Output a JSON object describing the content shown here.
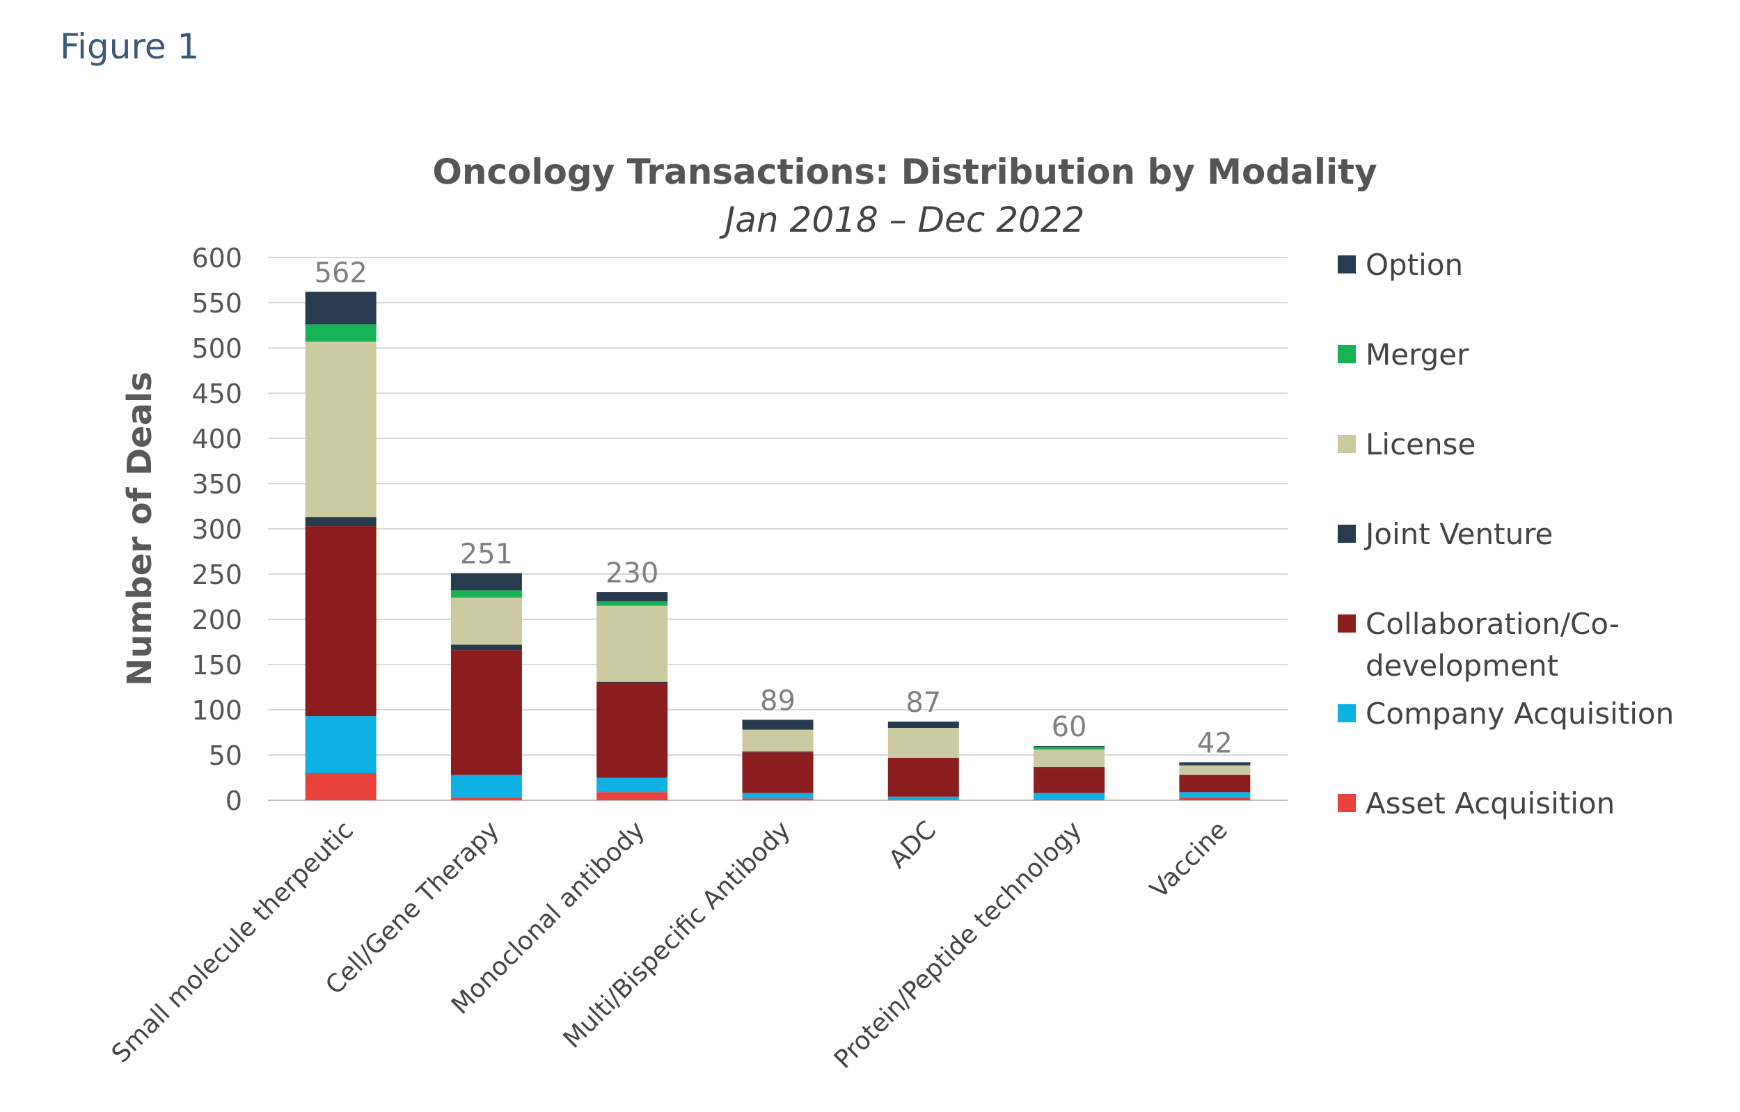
{
  "figure_label": "Figure 1",
  "chart_data": {
    "type": "bar",
    "stacked": true,
    "title": "Oncology Transactions: Distribution by Modality",
    "subtitle": "Jan 2018 – Dec 2022",
    "xlabel": "",
    "ylabel": "Number of Deals",
    "ylim": [
      0,
      600
    ],
    "yticks": [
      0,
      50,
      100,
      150,
      200,
      250,
      300,
      350,
      400,
      450,
      500,
      550,
      600
    ],
    "grid": true,
    "legend_position": "right",
    "categories": [
      "Small molecule therpeutic",
      "Cell/Gene Therapy",
      "Monoclonal antibody",
      "Multi/Bispecific Antibody",
      "ADC",
      "Protein/Peptide technology",
      "Vaccine"
    ],
    "totals": [
      562,
      251,
      230,
      89,
      87,
      60,
      42
    ],
    "series": [
      {
        "name": "Asset Acquisition",
        "color": "#e8423a",
        "values": [
          30,
          3,
          9,
          2,
          1,
          1,
          3
        ]
      },
      {
        "name": "Company Acquisition",
        "color": "#0fb0e4",
        "values": [
          63,
          25,
          16,
          6,
          3,
          7,
          6
        ]
      },
      {
        "name": "Collaboration/Co-development",
        "color": "#8b1d1f",
        "values": [
          210,
          138,
          105,
          45,
          43,
          28,
          19
        ]
      },
      {
        "name": "Joint Venture",
        "color": "#283a4e",
        "values": [
          10,
          6,
          1,
          1,
          0,
          1,
          0
        ]
      },
      {
        "name": "License",
        "color": "#cbcba2",
        "values": [
          194,
          52,
          84,
          24,
          33,
          19,
          10
        ]
      },
      {
        "name": "Merger",
        "color": "#17b354",
        "values": [
          19,
          8,
          5,
          0,
          0,
          3,
          1
        ]
      },
      {
        "name": "Option",
        "color": "#283a4e",
        "values": [
          36,
          19,
          10,
          11,
          7,
          1,
          3
        ]
      }
    ]
  }
}
